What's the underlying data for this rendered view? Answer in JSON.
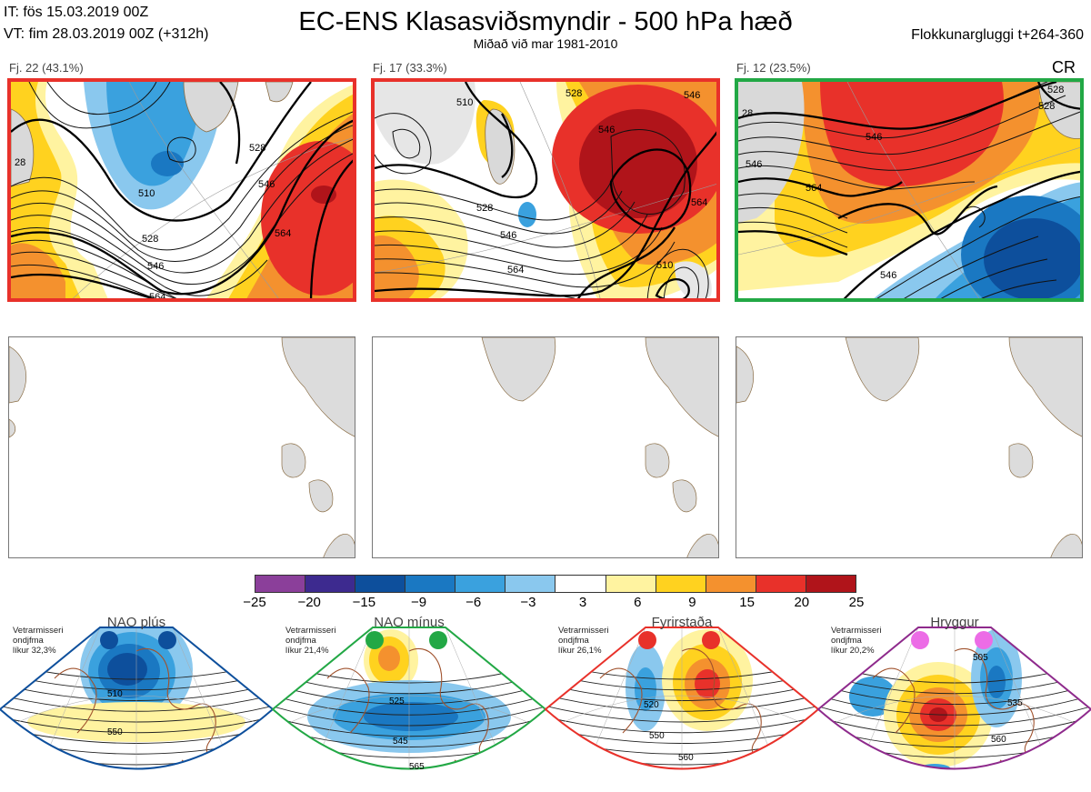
{
  "header": {
    "it": "IT: fös 15.03.2019 00Z",
    "vt": "VT: fim 28.03.2019 00Z  (+312h)",
    "title": "EC-ENS Klasasviðsmyndir - 500 hPa hæð",
    "subtitle": "Miðað við mar 1981-2010",
    "window": "Flokkunargluggi t+264-360"
  },
  "clusters": [
    {
      "label": "Fj. 22 (43.1%)",
      "border": "#e8312a",
      "contours": [
        "510",
        "528",
        "546",
        "564",
        "528",
        "546",
        "564",
        "28"
      ]
    },
    {
      "label": "Fj. 17 (33.3%)",
      "border": "#e8312a",
      "contours": [
        "510",
        "528",
        "546",
        "564",
        "546",
        "528",
        "546",
        "564",
        "510"
      ]
    },
    {
      "label": "Fj. 12 (23.5%)",
      "border": "#22a845",
      "tag": "CR",
      "contours": [
        "528",
        "546",
        "564",
        "546",
        "528",
        "546",
        "28"
      ]
    }
  ],
  "colorbar": {
    "ticks": [
      "−25",
      "−20",
      "−15",
      "−9",
      "−6",
      "−3",
      "3",
      "6",
      "9",
      "15",
      "20",
      "25"
    ],
    "colors": [
      "#8b3f9a",
      "#3d2a8f",
      "#0d4f9c",
      "#1a78c2",
      "#3aa1de",
      "#8ac8ee",
      "#ffffff",
      "#fff3a0",
      "#ffd21f",
      "#f4912e",
      "#e8312a",
      "#b0141a"
    ]
  },
  "regimes": [
    {
      "title": "NAO plús",
      "note": "Vetrarmisseri\nondjfma\nlíkur 32,3%",
      "color": "#0d4f9c",
      "dot": "#0d4f9c",
      "labels": [
        "510",
        "550"
      ]
    },
    {
      "title": "NAO mínus",
      "note": "Vetrarmisseri\nondjfma\nlíkur 21,4%",
      "color": "#22a845",
      "dot": "#22a845",
      "labels": [
        "525",
        "545",
        "565"
      ]
    },
    {
      "title": "Fyrirstaða",
      "note": "Vetrarmisseri\nondjfma\nlíkur 26,1%",
      "color": "#e8312a",
      "dot": "#e8312a",
      "labels": [
        "520",
        "550",
        "560"
      ]
    },
    {
      "title": "Hryggur",
      "note": "Vetrarmisseri\nondjfma\nlíkur 20,2%",
      "color": "#8e2a8c",
      "dot": "#ec6ce6",
      "labels": [
        "505",
        "535",
        "560"
      ]
    }
  ]
}
